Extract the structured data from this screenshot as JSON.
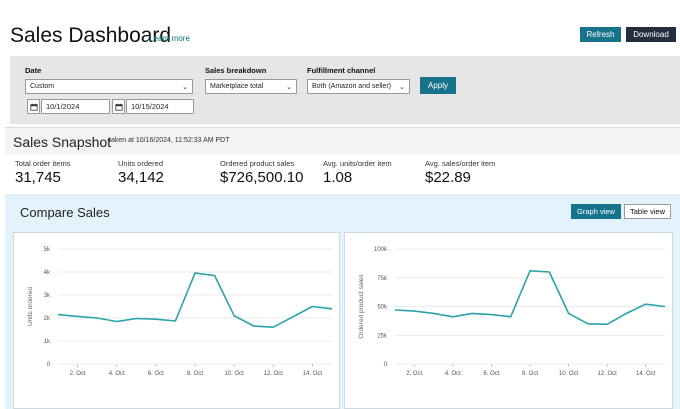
{
  "header": {
    "title": "Sales Dashboard",
    "learn_more": "Learn more",
    "refresh_label": "Refresh",
    "download_label": "Download"
  },
  "filters": {
    "date_label": "Date",
    "date_range_value": "Custom",
    "start_date": "10/1/2024",
    "end_date": "10/15/2024",
    "breakdown_label": "Sales breakdown",
    "breakdown_value": "Marketplace total",
    "channel_label": "Fulfillment channel",
    "channel_value": "Both (Amazon and seller)",
    "apply_label": "Apply"
  },
  "snapshot": {
    "title": "Sales Snapshot",
    "timestamp": "taken at 10/16/2024, 11:52:33 AM PDT",
    "metrics": [
      {
        "label": "Total order items",
        "value": "31,745"
      },
      {
        "label": "Units ordered",
        "value": "34,142"
      },
      {
        "label": "Ordered product sales",
        "value": "$726,500.10"
      },
      {
        "label": "Avg. units/order item",
        "value": "1.08"
      },
      {
        "label": "Avg. sales/order item",
        "value": "$22.89"
      }
    ]
  },
  "compare": {
    "title": "Compare Sales",
    "graph_view_label": "Graph view",
    "table_view_label": "Table view"
  },
  "colors": {
    "accent": "#16738b",
    "dark_button": "#232f3e",
    "line": "#2aa3a8",
    "compare_bg": "#e3f3fb"
  },
  "chart_data": [
    {
      "type": "line",
      "ylabel": "Units ordered",
      "ylim": [
        0,
        5000
      ],
      "yticks": [
        0,
        1000,
        2000,
        3000,
        4000,
        5000
      ],
      "ytick_labels": [
        "0",
        "1k",
        "2k",
        "3k",
        "4k",
        "5k"
      ],
      "x": [
        1,
        2,
        3,
        4,
        5,
        6,
        7,
        8,
        9,
        10,
        11,
        12,
        13,
        14,
        15
      ],
      "xticks": [
        2,
        4,
        6,
        8,
        10,
        12,
        14
      ],
      "xtick_labels": [
        "2. Oct",
        "4. Oct",
        "6. Oct",
        "8. Oct",
        "10. Oct",
        "12. Oct",
        "14. Oct"
      ],
      "grid": true,
      "series": [
        {
          "values": [
            2150,
            2070,
            2000,
            1850,
            1980,
            1950,
            1870,
            3950,
            3850,
            2100,
            1650,
            1600,
            2050,
            2500,
            2400
          ]
        }
      ]
    },
    {
      "type": "line",
      "ylabel": "Ordered product sales",
      "ylim": [
        0,
        100000
      ],
      "yticks": [
        0,
        25000,
        50000,
        75000,
        100000
      ],
      "ytick_labels": [
        "0",
        "25k",
        "50k",
        "75k",
        "100k"
      ],
      "x": [
        1,
        2,
        3,
        4,
        5,
        6,
        7,
        8,
        9,
        10,
        11,
        12,
        13,
        14,
        15
      ],
      "xticks": [
        2,
        4,
        6,
        8,
        10,
        12,
        14
      ],
      "xtick_labels": [
        "2. Oct",
        "4. Oct",
        "6. Oct",
        "8. Oct",
        "10. Oct",
        "12. Oct",
        "14. Oct"
      ],
      "grid": true,
      "series": [
        {
          "values": [
            47000,
            46000,
            44000,
            41000,
            44000,
            43000,
            41000,
            81000,
            80000,
            44000,
            35000,
            34500,
            44000,
            52000,
            50000
          ]
        }
      ]
    }
  ]
}
